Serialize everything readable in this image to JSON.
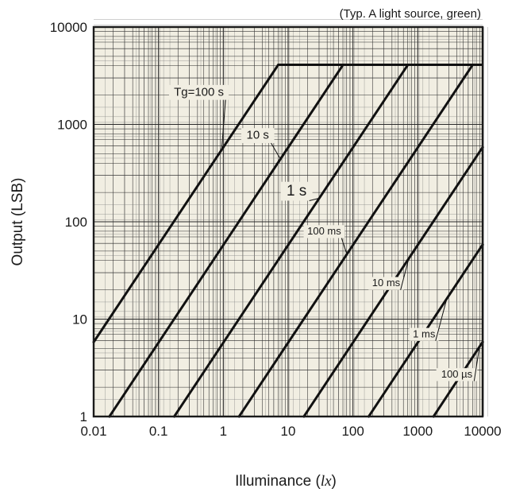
{
  "chart_data": {
    "type": "line",
    "xscale": "log",
    "yscale": "log",
    "xlim": [
      0.01,
      10000
    ],
    "ylim": [
      1,
      10000
    ],
    "grid": true,
    "xlabel": "Illuminance (lx)",
    "xlabel_parts": {
      "text": "Illuminance (",
      "unit": "lx",
      "close": ")"
    },
    "ylabel": "Output (LSB)",
    "annotation": "(Typ. A light source, green)",
    "x_ticks": [
      0.01,
      0.1,
      1,
      10,
      100,
      1000,
      10000
    ],
    "x_tick_labels": [
      "0.01",
      "0.1",
      "1",
      "10",
      "100",
      "1000",
      "10000"
    ],
    "y_ticks": [
      1,
      10,
      100,
      1000,
      10000
    ],
    "y_tick_labels": [
      "1",
      "10",
      "100",
      "1000",
      "10000"
    ],
    "saturation_level": 4095,
    "series": [
      {
        "name": "Tg=100 s",
        "x": [
          0.00895,
          7.04
        ],
        "y": [
          5.2,
          4095
        ]
      },
      {
        "name": "10 s",
        "x": [
          0.0175,
          70.4
        ],
        "y": [
          1,
          4095
        ]
      },
      {
        "name": "1 s",
        "x": [
          0.175,
          704
        ],
        "y": [
          1,
          4095
        ]
      },
      {
        "name": "100 ms",
        "x": [
          1.75,
          7040
        ],
        "y": [
          1,
          4095
        ]
      },
      {
        "name": "10 ms",
        "x": [
          17.5,
          10000
        ],
        "y": [
          1,
          582
        ]
      },
      {
        "name": "1 ms",
        "x": [
          175,
          10000
        ],
        "y": [
          1,
          58.2
        ]
      },
      {
        "name": "100 µs",
        "x": [
          1750,
          10000
        ],
        "y": [
          1,
          5.82
        ]
      }
    ],
    "curve_labels": [
      {
        "text": "Tg=100 s",
        "series": 0,
        "x": 0.42,
        "y": 2000,
        "size": "normal"
      },
      {
        "text": "10 s",
        "series": 1,
        "x": 3.4,
        "y": 720,
        "size": "normal"
      },
      {
        "text": "1 s",
        "series": 2,
        "x": 13.5,
        "y": 190,
        "size": "big"
      },
      {
        "text": "100 ms",
        "series": 3,
        "x": 36,
        "y": 75,
        "size": "small"
      },
      {
        "text": "10 ms",
        "series": 4,
        "x": 325,
        "y": 22,
        "size": "small"
      },
      {
        "text": "1 ms",
        "series": 5,
        "x": 1250,
        "y": 6.6,
        "size": "small"
      },
      {
        "text": "100 µs",
        "series": 6,
        "x": 4000,
        "y": 2.55,
        "size": "small"
      }
    ]
  }
}
